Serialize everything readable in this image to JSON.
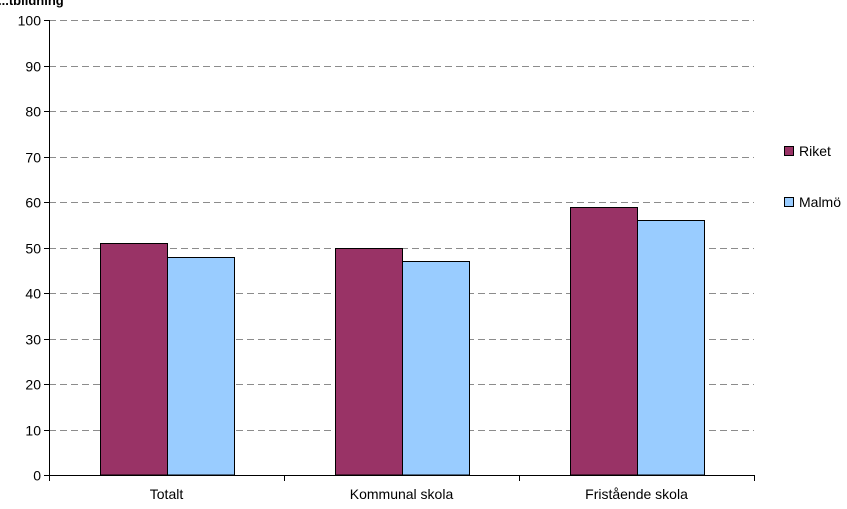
{
  "chart_data": {
    "type": "bar",
    "title": "...tbildning",
    "categories": [
      "Totalt",
      "Kommunal skola",
      "Fristående skola"
    ],
    "series": [
      {
        "name": "Riket",
        "values": [
          51,
          50,
          59
        ],
        "color": "#993366"
      },
      {
        "name": "Malmö",
        "values": [
          48,
          47,
          56
        ],
        "color": "#99CCFF"
      }
    ],
    "xlabel": "",
    "ylabel": "",
    "ylim": [
      0,
      100
    ],
    "yticks": [
      0,
      10,
      20,
      30,
      40,
      50,
      60,
      70,
      80,
      90,
      100
    ],
    "grid": true,
    "grid_style": "dashed",
    "legend_position": "right"
  }
}
